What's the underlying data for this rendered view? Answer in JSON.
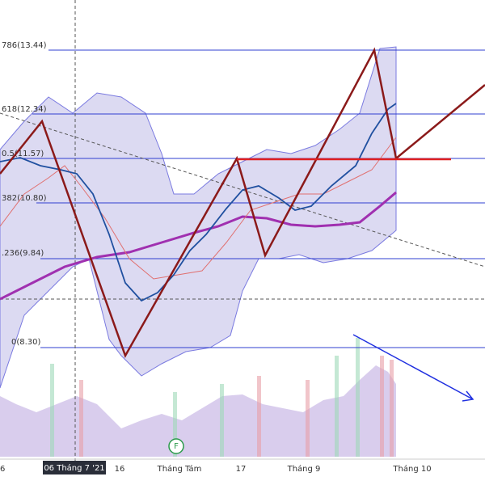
{
  "fib_levels": [
    {
      "label": "786(13.44)"
    },
    {
      "label": "618(12.34)"
    },
    {
      "label": "0.5(11.57)"
    },
    {
      "label": "382(10.80)"
    },
    {
      "label": ".236(9.84)"
    },
    {
      "label": "0(8.30)"
    }
  ],
  "x_axis": [
    "6",
    "06 Tháng 7 '21",
    "16",
    "Tháng Tám",
    "17",
    "Tháng 9",
    "Tháng 10"
  ],
  "marker": "F"
}
